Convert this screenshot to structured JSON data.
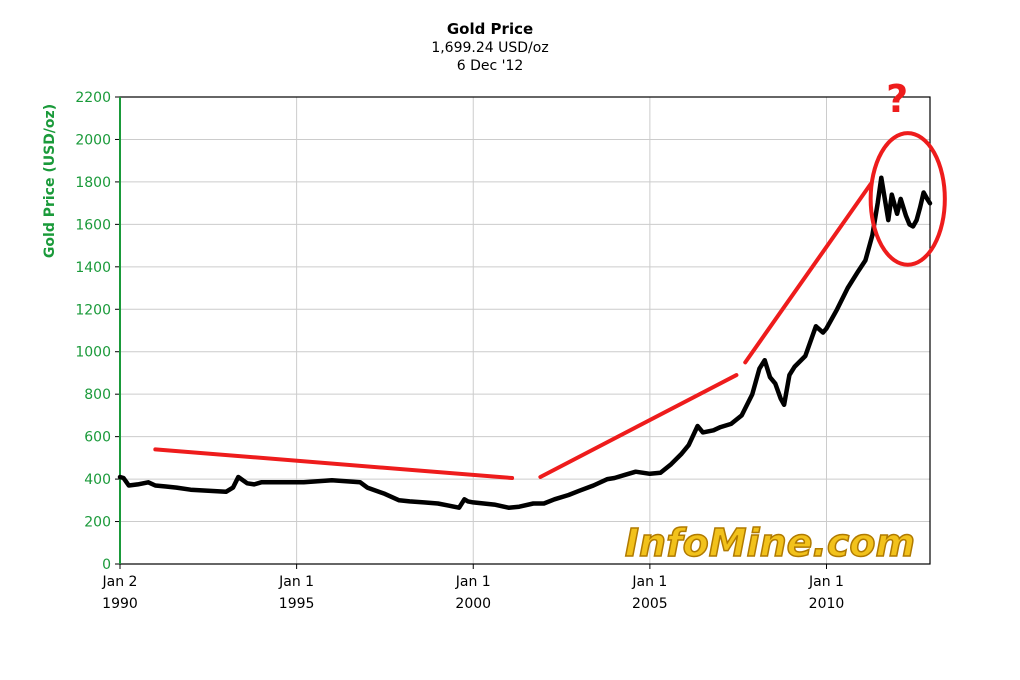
{
  "colors": {
    "axis_text_green": "#1a9a3a",
    "line": "#000000",
    "trend": "#ee1c1c",
    "grid": "#cccccc",
    "watermark_fill": "#f2c21b",
    "watermark_stroke": "#b07a00"
  },
  "chart_data": {
    "type": "line",
    "title": "Gold Price",
    "subtitle_lines": [
      "1,699.24 USD/oz",
      "6 Dec '12"
    ],
    "ylabel": "Gold Price (USD/oz)",
    "xlabel": "",
    "ylim": [
      0,
      2200
    ],
    "y_ticks": [
      0,
      200,
      400,
      600,
      800,
      1000,
      1200,
      1400,
      1600,
      1800,
      2000,
      2200
    ],
    "x_range": [
      1990.0,
      2012.93
    ],
    "x_ticks": [
      {
        "x": 1990.0,
        "line1": "Jan 2",
        "line2": "1990"
      },
      {
        "x": 1995.0,
        "line1": "Jan 1",
        "line2": "1995"
      },
      {
        "x": 2000.0,
        "line1": "Jan 1",
        "line2": "2000"
      },
      {
        "x": 2005.0,
        "line1": "Jan 1",
        "line2": "2005"
      },
      {
        "x": 2010.0,
        "line1": "Jan 1",
        "line2": "2010"
      }
    ],
    "grid": true,
    "series": [
      {
        "x": [
          1990.0,
          1990.1,
          1990.25,
          1990.5,
          1990.8,
          1991.0,
          1991.3,
          1991.6,
          1992.0,
          1992.5,
          1993.0,
          1993.2,
          1993.35,
          1993.6,
          1993.8,
          1994.0,
          1994.5,
          1994.9,
          1995.2,
          1995.6,
          1996.0,
          1996.4,
          1996.8,
          1997.0,
          1997.5,
          1997.9,
          1998.2,
          1998.6,
          1999.0,
          1999.3,
          1999.6,
          1999.75,
          1999.85,
          2000.0,
          2000.3,
          2000.6,
          2001.0,
          2001.3,
          2001.7,
          2002.0,
          2002.3,
          2002.7,
          2003.0,
          2003.4,
          2003.8,
          2004.0,
          2004.3,
          2004.6,
          2005.0,
          2005.3,
          2005.6,
          2005.9,
          2006.1,
          2006.35,
          2006.5,
          2006.8,
          2007.0,
          2007.3,
          2007.6,
          2007.9,
          2008.1,
          2008.25,
          2008.4,
          2008.55,
          2008.7,
          2008.8,
          2008.95,
          2009.1,
          2009.4,
          2009.7,
          2009.9,
          2010.0,
          2010.3,
          2010.6,
          2010.9,
          2011.1,
          2011.3,
          2011.45,
          2011.55,
          2011.67,
          2011.75,
          2011.85,
          2012.0,
          2012.1,
          2012.25,
          2012.35,
          2012.45,
          2012.55,
          2012.65,
          2012.75,
          2012.85,
          2012.93
        ],
        "y": [
          410,
          405,
          370,
          375,
          385,
          370,
          365,
          360,
          350,
          345,
          340,
          360,
          410,
          380,
          375,
          385,
          385,
          385,
          385,
          390,
          395,
          390,
          385,
          360,
          330,
          300,
          295,
          290,
          285,
          275,
          265,
          305,
          295,
          290,
          285,
          280,
          265,
          270,
          285,
          285,
          305,
          325,
          345,
          370,
          400,
          405,
          420,
          435,
          425,
          430,
          470,
          520,
          560,
          650,
          620,
          630,
          645,
          660,
          700,
          800,
          920,
          960,
          880,
          850,
          780,
          750,
          890,
          930,
          980,
          1120,
          1090,
          1110,
          1200,
          1300,
          1380,
          1430,
          1550,
          1700,
          1820,
          1700,
          1620,
          1740,
          1650,
          1720,
          1640,
          1600,
          1590,
          1620,
          1680,
          1750,
          1720,
          1699
        ]
      }
    ],
    "annotations": [
      {
        "type": "trend_line",
        "from": [
          1991.0,
          540
        ],
        "to": [
          2001.1,
          405
        ]
      },
      {
        "type": "trend_line",
        "from": [
          2001.9,
          410
        ],
        "to": [
          2007.45,
          890
        ]
      },
      {
        "type": "trend_line",
        "from": [
          2007.7,
          950
        ],
        "to": [
          2011.25,
          1790
        ]
      },
      {
        "type": "circle",
        "center": [
          2012.3,
          1720
        ],
        "rx_years": 1.05,
        "ry_value": 310
      },
      {
        "type": "text",
        "text": "?",
        "at": [
          2012.0,
          2200
        ]
      }
    ],
    "watermark": "InfoMine.com"
  }
}
